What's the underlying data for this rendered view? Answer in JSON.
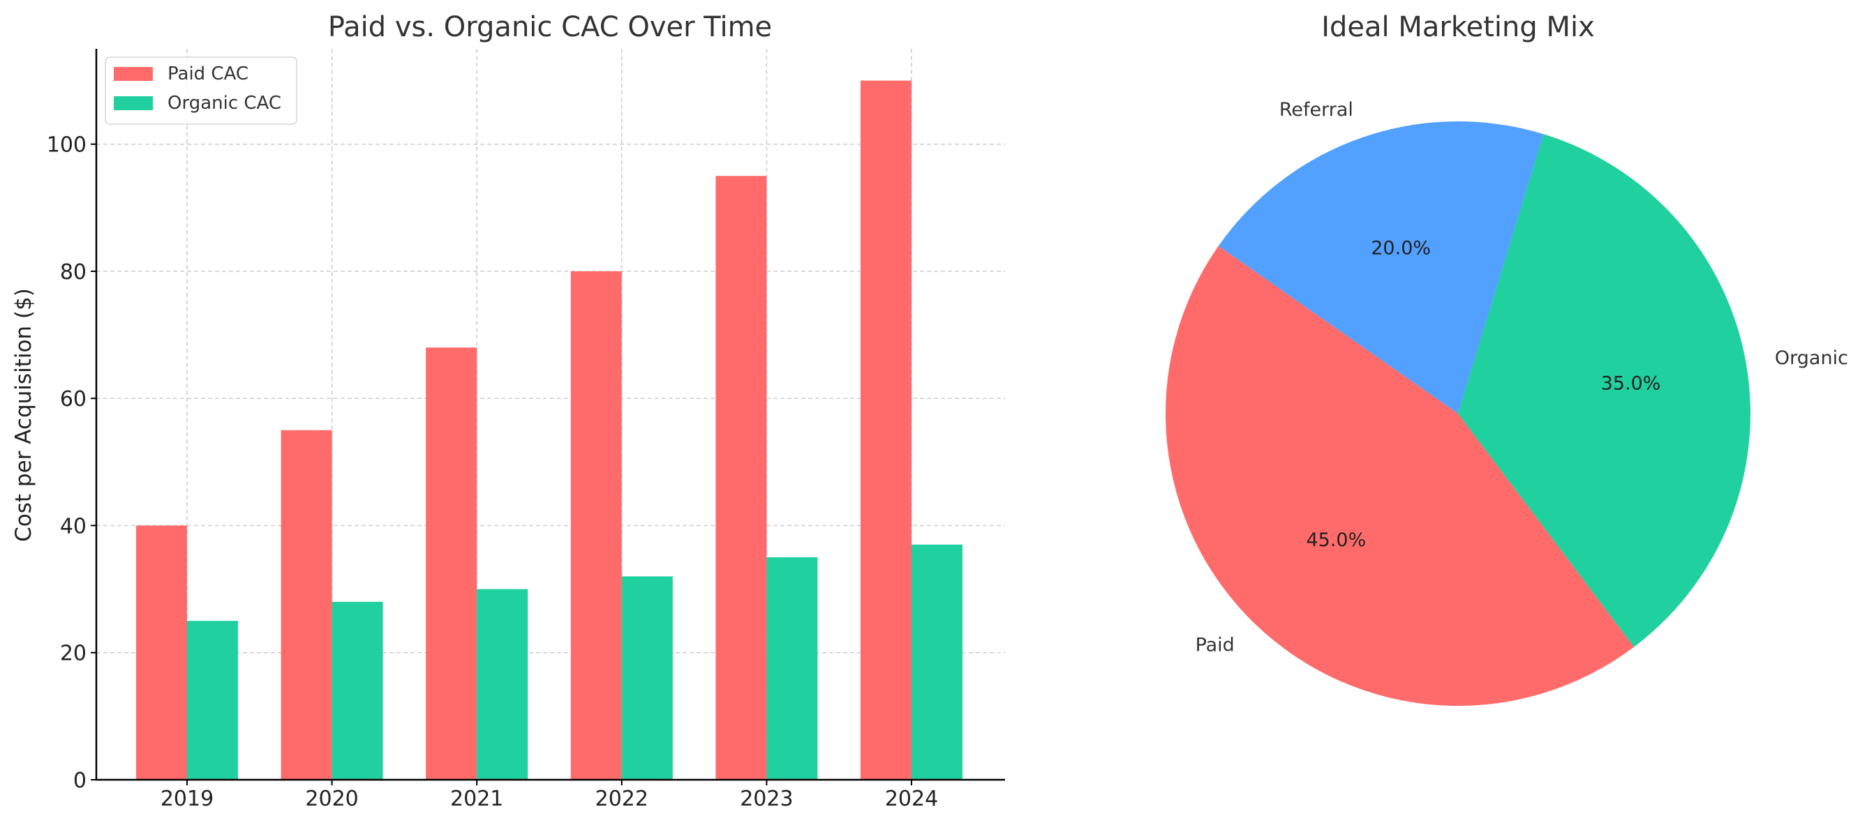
{
  "chart_data": [
    {
      "type": "bar",
      "title": "Paid vs. Organic CAC Over Time",
      "xlabel": "",
      "ylabel": "Cost per Acquisition ($)",
      "categories": [
        "2019",
        "2020",
        "2021",
        "2022",
        "2023",
        "2024"
      ],
      "series": [
        {
          "name": "Paid CAC",
          "color": "#ff6b6b",
          "values": [
            40,
            55,
            68,
            80,
            95,
            110
          ]
        },
        {
          "name": "Organic CAC",
          "color": "#20d09e",
          "values": [
            25,
            28,
            30,
            32,
            35,
            37
          ]
        }
      ],
      "ylim": [
        0,
        115
      ],
      "yticks": [
        0,
        20,
        40,
        60,
        80,
        100
      ],
      "grid": true,
      "legend": "top-left"
    },
    {
      "type": "pie",
      "title": "Ideal Marketing Mix",
      "slices": [
        {
          "label": "Paid",
          "value": 45,
          "pct_label": "45.0%",
          "color": "#ff6b6b"
        },
        {
          "label": "Organic",
          "value": 35,
          "pct_label": "35.0%",
          "color": "#20d09e"
        },
        {
          "label": "Referral",
          "value": 20,
          "pct_label": "20.0%",
          "color": "#52a0ff"
        }
      ]
    }
  ]
}
